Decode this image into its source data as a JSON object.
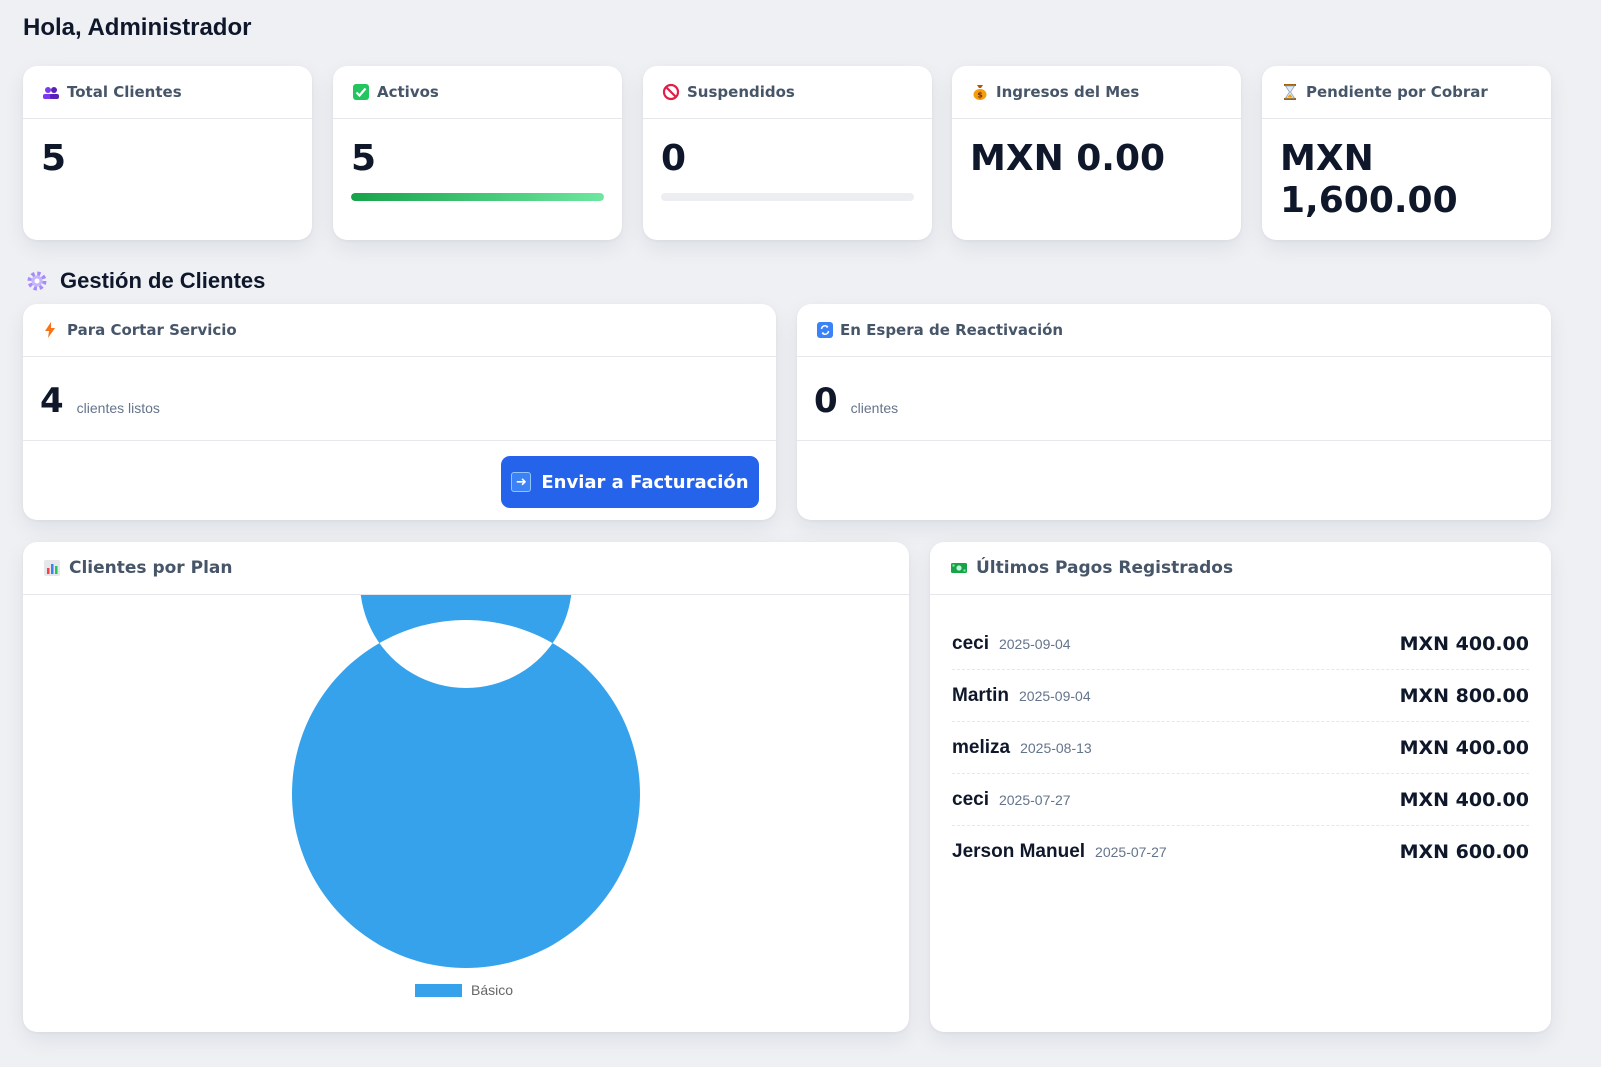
{
  "greeting": "Hola, Administrador",
  "stats": [
    {
      "label": "Total Clientes",
      "value": "5",
      "icon": "people-icon"
    },
    {
      "label": "Activos",
      "value": "5",
      "icon": "check-icon",
      "progress": 1.0
    },
    {
      "label": "Suspendidos",
      "value": "0",
      "icon": "prohibited-icon",
      "progress": 0.0
    },
    {
      "label": "Ingresos del Mes",
      "value": "MXN 0.00",
      "icon": "money-bag-icon"
    },
    {
      "label": "Pendiente por Cobrar",
      "value": "MXN 1,600.00",
      "icon": "hourglass-icon"
    }
  ],
  "section_title": "Gestión de Clientes",
  "cortar": {
    "title": "Para Cortar Servicio",
    "count": "4",
    "suffix": "clientes listos",
    "button_label": "Enviar a Facturación"
  },
  "espera": {
    "title": "En Espera de Reactivación",
    "count": "0",
    "suffix": "clientes"
  },
  "plan_chart": {
    "title": "Clientes por Plan"
  },
  "chart_data": {
    "type": "pie",
    "categories": [
      "Básico"
    ],
    "values": [
      5
    ],
    "colors": [
      "#36a2eb"
    ],
    "legend_position": "bottom"
  },
  "payments": {
    "title": "Últimos Pagos Registrados",
    "rows": [
      {
        "name": "ceci",
        "date": "2025-09-04",
        "amount": "MXN 400.00"
      },
      {
        "name": "Martin",
        "date": "2025-09-04",
        "amount": "MXN 800.00"
      },
      {
        "name": "meliza",
        "date": "2025-08-13",
        "amount": "MXN 400.00"
      },
      {
        "name": "ceci",
        "date": "2025-07-27",
        "amount": "MXN 400.00"
      },
      {
        "name": "Jerson Manuel",
        "date": "2025-07-27",
        "amount": "MXN 600.00"
      }
    ]
  },
  "colors": {
    "accent": "#2563eb",
    "success": "#16a34a",
    "chart": "#36a2eb"
  }
}
